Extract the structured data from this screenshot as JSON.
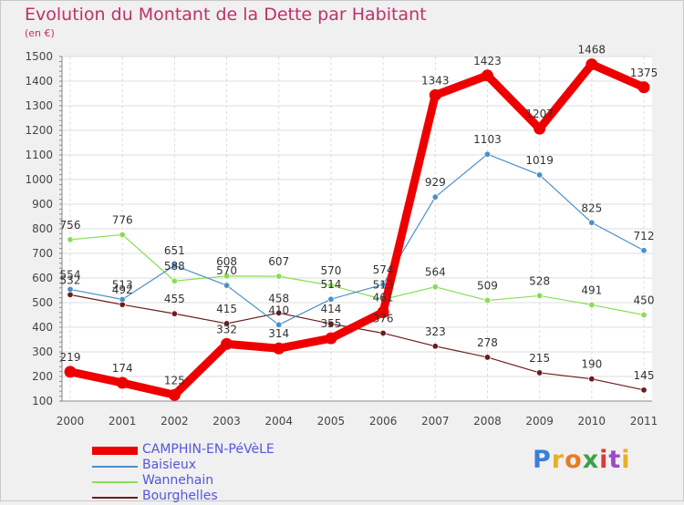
{
  "title": "Evolution du Montant de la Dette par Habitant",
  "unit": "(en €)",
  "brand": "Proxiti",
  "chart_data": {
    "type": "line",
    "categories": [
      "2000",
      "2001",
      "2002",
      "2003",
      "2004",
      "2005",
      "2006",
      "2007",
      "2008",
      "2009",
      "2010",
      "2011"
    ],
    "ylim": [
      100,
      1500
    ],
    "yticks": [
      100,
      200,
      300,
      400,
      500,
      600,
      700,
      800,
      900,
      1000,
      1100,
      1200,
      1300,
      1400,
      1500
    ],
    "grid": true,
    "legend_position": "bottom-left",
    "series": [
      {
        "name": "CAMPHIN-EN-PéVèLE",
        "color": "#ee0000",
        "values": [
          219,
          174,
          125,
          332,
          314,
          355,
          461,
          1343,
          1423,
          1207,
          1468,
          1375
        ],
        "labels": [
          "219",
          "174",
          "125",
          "332",
          "314",
          "355",
          "461",
          "1343",
          "1423",
          "1207",
          "1468",
          "1375"
        ]
      },
      {
        "name": "Baisieux",
        "color": "#4a90c8",
        "values": [
          554,
          513,
          651,
          570,
          410,
          514,
          574,
          929,
          1103,
          1019,
          825,
          712
        ],
        "labels": [
          "554",
          "513",
          "651",
          "570",
          "410",
          "514",
          "574",
          "929",
          "1103",
          "1019",
          "825",
          "712"
        ]
      },
      {
        "name": "Wannehain",
        "color": "#88dd55",
        "values": [
          756,
          776,
          588,
          608,
          607,
          570,
          513,
          564,
          509,
          528,
          491,
          450
        ],
        "labels": [
          "756",
          "776",
          "588",
          "608",
          "607",
          "570",
          "513",
          "564",
          "509",
          "528",
          "491",
          "450"
        ]
      },
      {
        "name": "Bourghelles",
        "color": "#6b1c1c",
        "values": [
          532,
          492,
          455,
          415,
          458,
          414,
          376,
          323,
          278,
          215,
          190,
          145
        ],
        "labels": [
          "532",
          "492",
          "455",
          "415",
          "458",
          "414",
          "376",
          "323",
          "278",
          "215",
          "190",
          "145"
        ]
      }
    ]
  }
}
